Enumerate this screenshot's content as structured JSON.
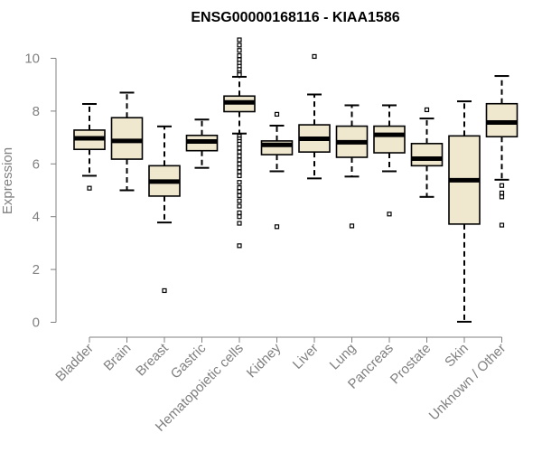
{
  "chart_data": {
    "type": "boxplot",
    "title": "ENSG00000168116 - KIAA1586",
    "ylabel": "Expression",
    "xlabel": "",
    "ylim": [
      0,
      10.8
    ],
    "yticks": [
      "0",
      "2",
      "4",
      "6",
      "8",
      "10"
    ],
    "categories": [
      "Bladder",
      "Brain",
      "Breast",
      "Gastric",
      "Hematopoietic cells",
      "Kidney",
      "Liver",
      "Lung",
      "Pancreas",
      "Prostate",
      "Skin",
      "Unknown / Other"
    ],
    "box_fill": "#efe8cf",
    "box_stroke": "#000000",
    "boxes": [
      {
        "whisker_low": 5.55,
        "q1": 6.55,
        "median": 6.97,
        "q3": 7.28,
        "whisker_high": 8.27,
        "outliers": [
          5.08
        ]
      },
      {
        "whisker_low": 5.0,
        "q1": 6.18,
        "median": 6.87,
        "q3": 7.75,
        "whisker_high": 8.7,
        "outliers": []
      },
      {
        "whisker_low": 3.78,
        "q1": 4.78,
        "median": 5.33,
        "q3": 5.93,
        "whisker_high": 7.42,
        "outliers": [
          1.2
        ]
      },
      {
        "whisker_low": 5.85,
        "q1": 6.5,
        "median": 6.85,
        "q3": 7.08,
        "whisker_high": 7.68,
        "outliers": []
      },
      {
        "whisker_low": 7.15,
        "q1": 7.98,
        "median": 8.33,
        "q3": 8.57,
        "whisker_high": 9.3,
        "outliers": [
          10.7,
          10.5,
          10.3,
          10.1,
          9.95,
          9.82,
          9.7,
          9.58,
          9.45,
          9.38,
          7.05,
          6.95,
          6.85,
          6.75,
          6.6,
          6.45,
          6.3,
          6.15,
          6.0,
          5.85,
          5.7,
          5.55,
          5.3,
          5.1,
          4.95,
          4.8,
          4.6,
          4.4,
          4.15,
          4.0,
          3.75,
          2.9
        ]
      },
      {
        "whisker_low": 5.72,
        "q1": 6.35,
        "median": 6.72,
        "q3": 6.87,
        "whisker_high": 7.45,
        "outliers": [
          7.88,
          3.62
        ]
      },
      {
        "whisker_low": 5.45,
        "q1": 6.45,
        "median": 6.95,
        "q3": 7.48,
        "whisker_high": 8.63,
        "outliers": [
          10.07
        ]
      },
      {
        "whisker_low": 5.52,
        "q1": 6.25,
        "median": 6.82,
        "q3": 7.43,
        "whisker_high": 8.22,
        "outliers": [
          3.65
        ]
      },
      {
        "whisker_low": 5.72,
        "q1": 6.42,
        "median": 7.1,
        "q3": 7.43,
        "whisker_high": 8.22,
        "outliers": [
          4.1
        ]
      },
      {
        "whisker_low": 4.75,
        "q1": 5.93,
        "median": 6.2,
        "q3": 6.77,
        "whisker_high": 7.72,
        "outliers": [
          8.05
        ]
      },
      {
        "whisker_low": 0.02,
        "q1": 3.72,
        "median": 5.38,
        "q3": 7.06,
        "whisker_high": 8.37,
        "outliers": []
      },
      {
        "whisker_low": 5.4,
        "q1": 7.03,
        "median": 7.57,
        "q3": 8.28,
        "whisker_high": 9.33,
        "outliers": [
          5.18,
          4.9,
          4.75,
          3.68
        ]
      }
    ]
  }
}
